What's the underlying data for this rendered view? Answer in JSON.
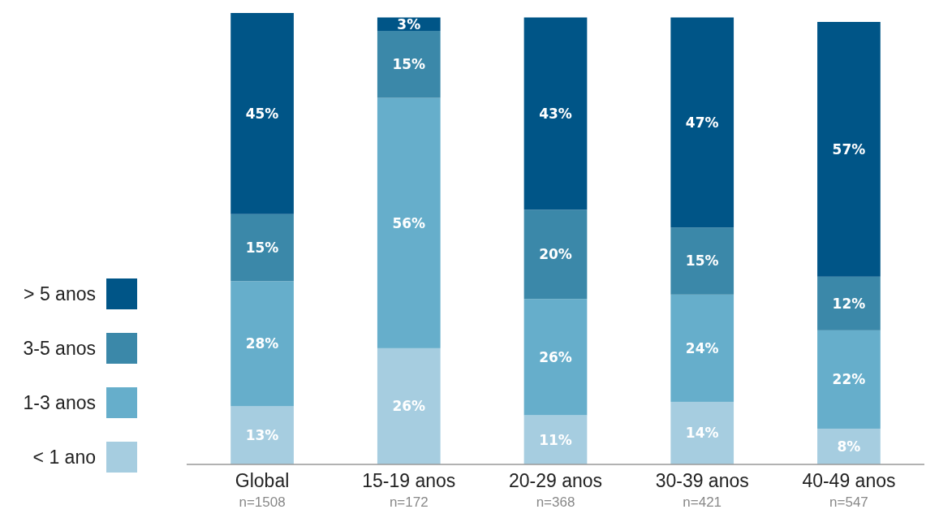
{
  "chart_data": {
    "type": "bar",
    "stacked": true,
    "legend": "left",
    "categories": [
      "Global\nn=1508",
      "15-19 anos\nn=172",
      "20-29 anos\nn=368",
      "30-39 anos\nn=421",
      "40-49 anos\nn=547"
    ],
    "series": [
      {
        "name": "< 1 ano",
        "color": "#a6cde0",
        "values": [
          13,
          26,
          11,
          14,
          8
        ],
        "value_labels": [
          "13%",
          "26%",
          "11%",
          "14%",
          "8%"
        ]
      },
      {
        "name": "1-3 anos",
        "color": "#66aecb",
        "values": [
          28,
          56,
          26,
          24,
          22
        ],
        "value_labels": [
          "28%",
          "56%",
          "26%",
          "24%",
          "22%"
        ]
      },
      {
        "name": "3-5 anos",
        "color": "#3b88a9",
        "values": [
          15,
          15,
          20,
          15,
          12
        ],
        "value_labels": [
          "15%",
          "15%",
          "20%",
          "15%",
          "12%"
        ]
      },
      {
        "name": "> 5 anos",
        "color": "#005587",
        "values": [
          45,
          3,
          43,
          47,
          57
        ],
        "value_labels": [
          "45%",
          "3%",
          "43%",
          "47%",
          "57%"
        ]
      }
    ]
  }
}
